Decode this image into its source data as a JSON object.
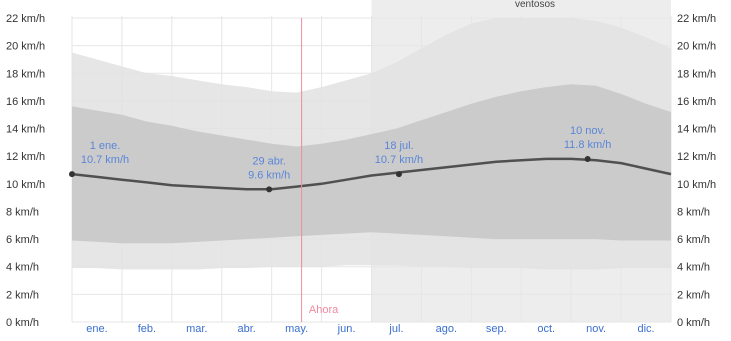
{
  "chart_data": {
    "type": "area",
    "ylim": [
      0,
      22
    ],
    "y_ticks": [
      "0 km/h",
      "2 km/h",
      "4 km/h",
      "6 km/h",
      "8 km/h",
      "10 km/h",
      "12 km/h",
      "14 km/h",
      "16 km/h",
      "18 km/h",
      "20 km/h",
      "22 km/h"
    ],
    "y_tick_values": [
      0,
      2,
      4,
      6,
      8,
      10,
      12,
      14,
      16,
      18,
      20,
      22
    ],
    "categories": [
      "ene.",
      "feb.",
      "mar.",
      "abr.",
      "may.",
      "jun.",
      "jul.",
      "ago.",
      "sep.",
      "oct.",
      "nov.",
      "dic."
    ],
    "season_label": "ventosos",
    "now_label": "Ahora",
    "now_month": 4.6,
    "windy_season": [
      6.0,
      12.0
    ],
    "x": [
      0,
      0.5,
      1,
      1.5,
      2,
      2.5,
      3,
      3.5,
      4,
      4.5,
      5,
      5.5,
      6,
      6.5,
      7,
      7.5,
      8,
      8.5,
      9,
      9.5,
      10,
      10.5,
      11,
      11.5,
      12
    ],
    "series": [
      {
        "values": [
          10.7,
          10.5,
          10.3,
          10.1,
          9.9,
          9.8,
          9.7,
          9.6,
          9.6,
          9.8,
          10.0,
          10.3,
          10.6,
          10.8,
          11.0,
          11.2,
          11.4,
          11.6,
          11.7,
          11.8,
          11.8,
          11.7,
          11.5,
          11.1,
          10.7
        ]
      }
    ],
    "bands": [
      {
        "lower": [
          3.9,
          3.9,
          3.8,
          3.8,
          3.8,
          3.8,
          3.9,
          3.9,
          4.0,
          4.0,
          4.0,
          4.1,
          4.1,
          4.1,
          4.0,
          4.0,
          3.9,
          3.9,
          3.9,
          3.8,
          3.8,
          3.8,
          3.9,
          3.9,
          3.9
        ],
        "upper": [
          19.5,
          19.0,
          18.5,
          18.0,
          17.8,
          17.5,
          17.2,
          17.0,
          16.7,
          16.6,
          17.0,
          17.5,
          18.0,
          18.8,
          19.8,
          20.8,
          21.6,
          22.0,
          22.0,
          22.0,
          22.0,
          21.8,
          21.3,
          20.6,
          19.8
        ]
      },
      {
        "lower": [
          5.9,
          5.8,
          5.7,
          5.7,
          5.7,
          5.8,
          5.9,
          6.0,
          6.1,
          6.2,
          6.3,
          6.4,
          6.5,
          6.4,
          6.3,
          6.2,
          6.1,
          6.0,
          6.0,
          6.0,
          6.0,
          6.0,
          5.9,
          5.9,
          5.9
        ],
        "upper": [
          15.6,
          15.3,
          15.0,
          14.5,
          14.2,
          13.8,
          13.5,
          13.2,
          12.9,
          12.7,
          12.9,
          13.2,
          13.6,
          14.0,
          14.6,
          15.2,
          15.8,
          16.3,
          16.7,
          17.0,
          17.2,
          17.1,
          16.5,
          15.8,
          15.2
        ]
      }
    ],
    "annotations": [
      {
        "month": 0,
        "value": 10.7,
        "date": "1 ene.",
        "label": "10.7 km/h"
      },
      {
        "month": 3.95,
        "value": 9.6,
        "date": "29 abr.",
        "label": "9.6 km/h"
      },
      {
        "month": 6.55,
        "value": 10.7,
        "date": "18 jul.",
        "label": "10.7 km/h"
      },
      {
        "month": 10.33,
        "value": 11.8,
        "date": "10 nov.",
        "label": "11.8 km/h"
      }
    ],
    "colors": {
      "outer_band": "#e2e2e2",
      "inner_band": "#c8c8c8",
      "line": "#505050",
      "now_line": "#f08aa0",
      "season_shade": "#ededed",
      "month_label": "#3a6fd0",
      "annotation": "#5b86d8"
    }
  }
}
